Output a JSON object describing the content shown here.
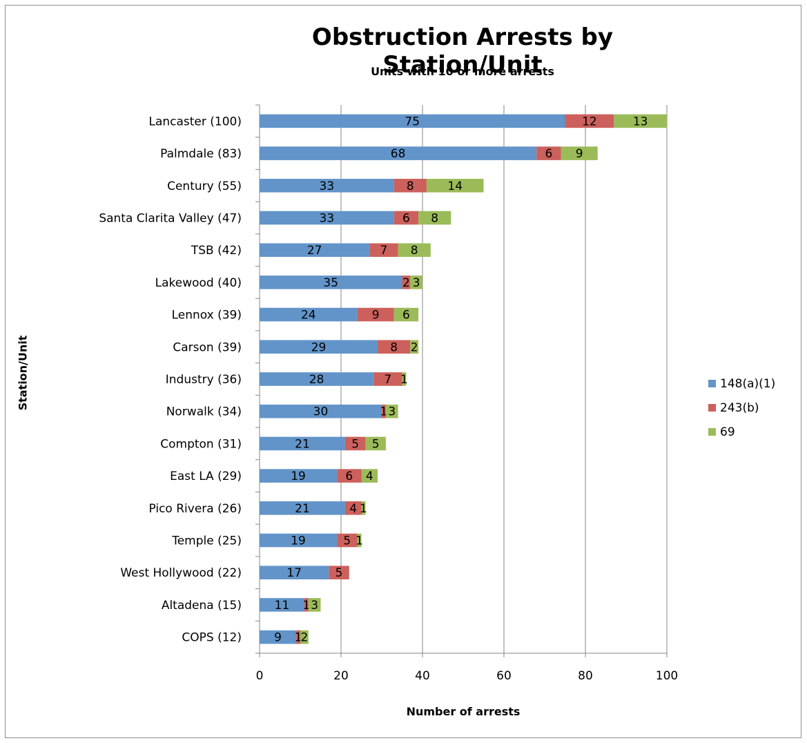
{
  "chart_data": {
    "type": "bar",
    "orientation": "horizontal",
    "stacked": true,
    "title": "Obstruction Arrests by Station/Unit",
    "subtitle": "Units with 10 or more arrests",
    "xlabel": "Number of arrests",
    "ylabel": "Station/Unit",
    "xlim": [
      0,
      100
    ],
    "xticks": [
      "0",
      "20",
      "40",
      "60",
      "80",
      "100"
    ],
    "grid": "vertical",
    "legend_position": "right",
    "categories": [
      "Lancaster (100)",
      "Palmdale (83)",
      "Century (55)",
      "Santa Clarita Valley (47)",
      "TSB (42)",
      "Lakewood (40)",
      "Lennox (39)",
      "Carson (39)",
      "Industry (36)",
      "Norwalk (34)",
      "Compton (31)",
      "East LA (29)",
      "Pico Rivera (26)",
      "Temple (25)",
      "West Hollywood (22)",
      "Altadena (15)",
      "COPS (12)"
    ],
    "series": [
      {
        "name": "148(a)(1)",
        "color": "#6294c9",
        "values": [
          75,
          68,
          33,
          33,
          27,
          35,
          24,
          29,
          28,
          30,
          21,
          19,
          21,
          19,
          17,
          11,
          9
        ]
      },
      {
        "name": "243(b)",
        "color": "#cc605c",
        "values": [
          12,
          6,
          8,
          6,
          7,
          2,
          9,
          8,
          7,
          1,
          5,
          6,
          4,
          5,
          5,
          1,
          1
        ]
      },
      {
        "name": "69",
        "color": "#9bbb59",
        "values": [
          13,
          9,
          14,
          8,
          8,
          3,
          6,
          2,
          1,
          3,
          5,
          4,
          1,
          1,
          null,
          3,
          2
        ]
      }
    ]
  }
}
